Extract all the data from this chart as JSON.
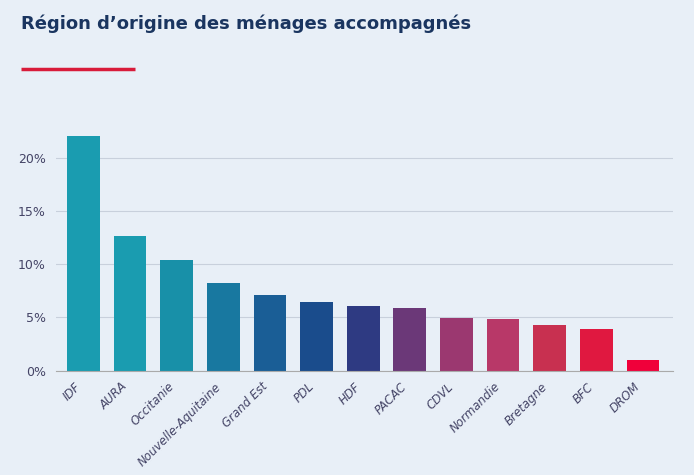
{
  "title": "Région d’origine des ménages accompagnés",
  "categories": [
    "IDF",
    "AURA",
    "Occitanie",
    "Nouvelle-Aquitaine",
    "Grand Est",
    "PDL",
    "HDF",
    "PACAC",
    "CDVL",
    "Normandie",
    "Bretagne",
    "BFC",
    "DROM"
  ],
  "values": [
    22.0,
    12.6,
    10.4,
    8.2,
    7.1,
    6.4,
    6.1,
    5.9,
    4.9,
    4.8,
    4.3,
    3.9,
    1.0
  ],
  "bar_colors": [
    "#1A9CB0",
    "#1A9CB0",
    "#1890A8",
    "#1878A0",
    "#1A5E96",
    "#1A4C8C",
    "#2E3A82",
    "#6B3878",
    "#9B3870",
    "#B83868",
    "#C83050",
    "#E01840",
    "#F0003A"
  ],
  "background_color": "#E8EFF7",
  "title_color": "#1A3560",
  "title_fontsize": 13,
  "underline_color": "#D81B3A",
  "tick_color": "#444466",
  "grid_color": "#C8D0DC",
  "ylim": [
    0,
    25
  ],
  "yticks": [
    0,
    5,
    10,
    15,
    20
  ],
  "ytick_labels": [
    "0%",
    "5%",
    "10%",
    "15%",
    "20%"
  ]
}
